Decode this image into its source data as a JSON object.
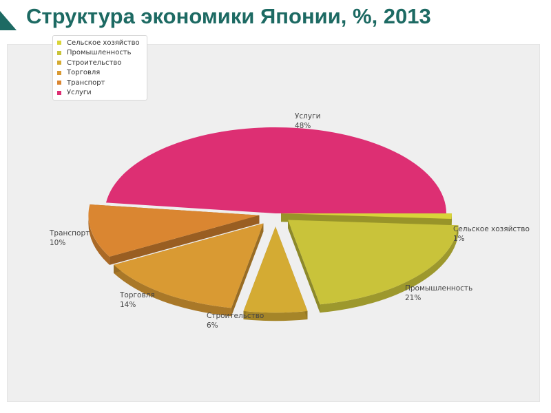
{
  "title": "Структура экономики Японии, %, 2013",
  "colors": {
    "accent": "#1d6a63"
  },
  "chart_data": {
    "type": "pie",
    "title": "",
    "legend_position": "top-left",
    "slices": [
      {
        "name": "Сельское хозяйство",
        "value": 1,
        "label": "1%",
        "color": "#d9d43a"
      },
      {
        "name": "Промышленность",
        "value": 21,
        "label": "21%",
        "color": "#c9c33a"
      },
      {
        "name": "Строительство",
        "value": 6,
        "label": "6%",
        "color": "#d4ab33"
      },
      {
        "name": "Торговля",
        "value": 14,
        "label": "14%",
        "color": "#d99a33"
      },
      {
        "name": "Транспорт",
        "value": 10,
        "label": "10%",
        "color": "#da8631"
      },
      {
        "name": "Услуги",
        "value": 48,
        "label": "48%",
        "color": "#dd2f73"
      }
    ]
  }
}
